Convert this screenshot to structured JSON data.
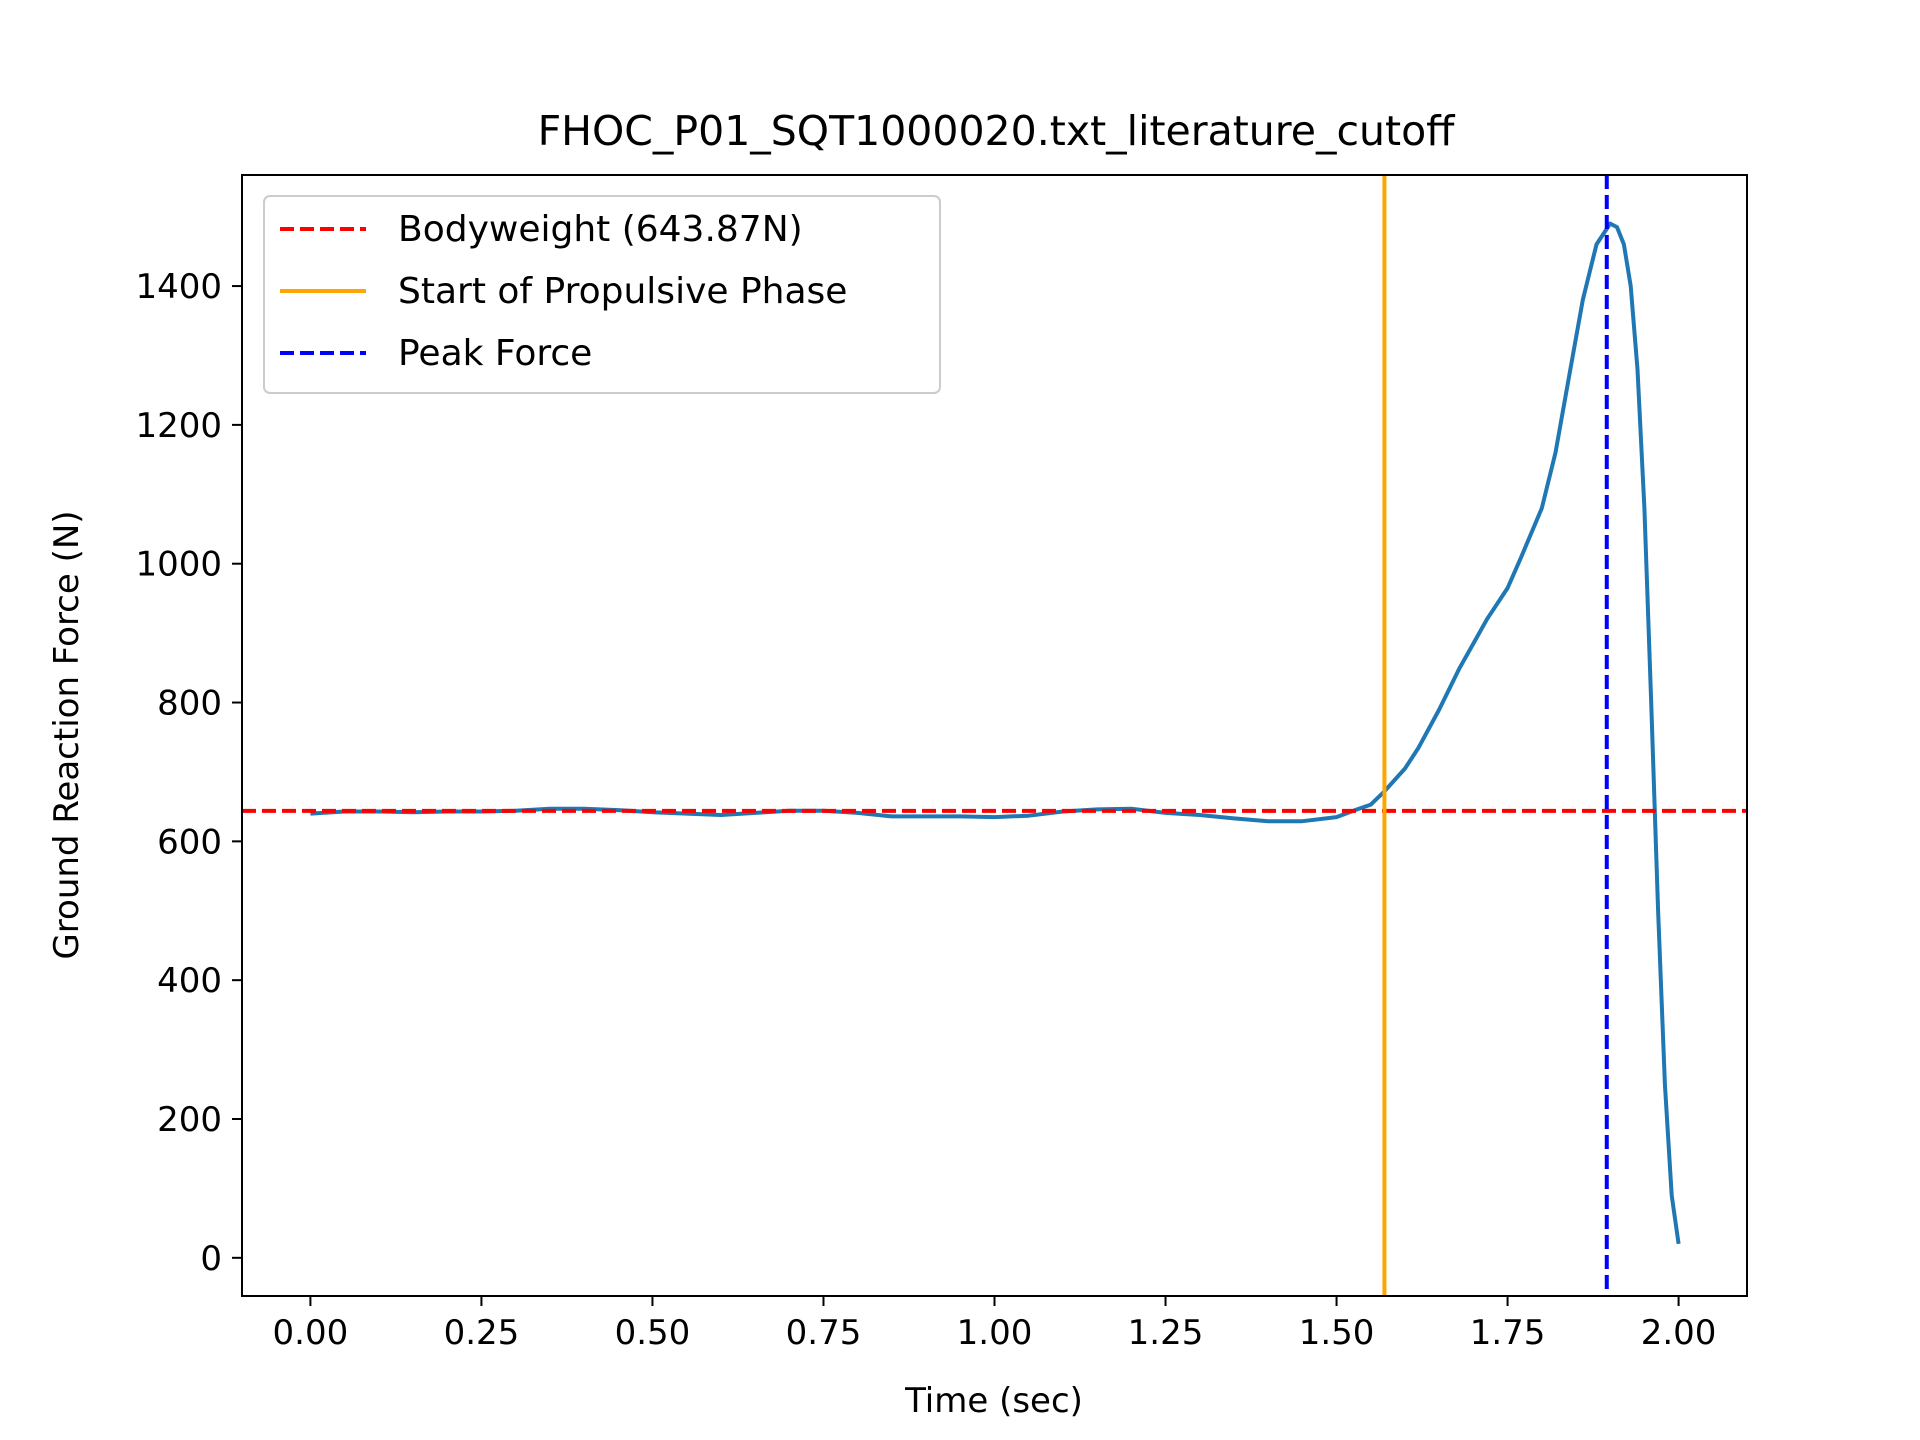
{
  "colors": {
    "series": "#1f77b4",
    "bodyweight": "#ff0000",
    "propulsive": "#ffa500",
    "peak": "#0000ff"
  },
  "chart_data": {
    "type": "line",
    "title": "FHOC_P01_SQT1000020.txt_literature_cutoff",
    "xlabel": "Time (sec)",
    "ylabel": "Ground Reaction Force (N)",
    "xlim": [
      -0.1,
      2.1
    ],
    "ylim": [
      -55,
      1560
    ],
    "x_ticks": [
      0,
      0.25,
      0.5,
      0.75,
      1.0,
      1.25,
      1.5,
      1.75,
      2.0
    ],
    "x_tick_labels": [
      "0.00",
      "0.25",
      "0.50",
      "0.75",
      "1.00",
      "1.25",
      "1.50",
      "1.75",
      "2.00"
    ],
    "y_ticks": [
      0,
      200,
      400,
      600,
      800,
      1000,
      1200,
      1400
    ],
    "y_tick_labels": [
      "0",
      "200",
      "400",
      "600",
      "800",
      "1000",
      "1200",
      "1400"
    ],
    "grid": false,
    "legend_position": "top-left",
    "series": [
      {
        "x": [
          0.0,
          0.05,
          0.1,
          0.15,
          0.2,
          0.25,
          0.3,
          0.35,
          0.4,
          0.45,
          0.5,
          0.55,
          0.6,
          0.65,
          0.7,
          0.75,
          0.8,
          0.85,
          0.9,
          0.95,
          1.0,
          1.05,
          1.1,
          1.15,
          1.2,
          1.25,
          1.3,
          1.35,
          1.4,
          1.45,
          1.5,
          1.53,
          1.55,
          1.57,
          1.6,
          1.62,
          1.65,
          1.68,
          1.7,
          1.72,
          1.75,
          1.77,
          1.8,
          1.82,
          1.84,
          1.86,
          1.88,
          1.9,
          1.91,
          1.92,
          1.93,
          1.94,
          1.95,
          1.96,
          1.97,
          1.98,
          1.99,
          2.0
        ],
        "y": [
          640,
          643,
          643,
          642,
          643,
          643,
          644,
          647,
          647,
          645,
          642,
          640,
          638,
          641,
          644,
          644,
          641,
          636,
          636,
          636,
          635,
          637,
          643,
          646,
          647,
          641,
          638,
          633,
          629,
          629,
          635,
          646,
          653,
          672,
          705,
          735,
          790,
          850,
          885,
          920,
          965,
          1010,
          1080,
          1160,
          1270,
          1380,
          1460,
          1490,
          1485,
          1460,
          1400,
          1280,
          1080,
          800,
          500,
          250,
          90,
          20
        ]
      }
    ],
    "reference_lines": [
      {
        "label": "Bodyweight (643.87N)",
        "orientation": "horizontal",
        "value": 643.87,
        "style": "dashed"
      },
      {
        "label": "Start of Propulsive Phase",
        "orientation": "vertical",
        "value": 1.57,
        "style": "solid"
      },
      {
        "label": "Peak Force",
        "orientation": "vertical",
        "value": 1.895,
        "style": "dashed"
      }
    ]
  }
}
